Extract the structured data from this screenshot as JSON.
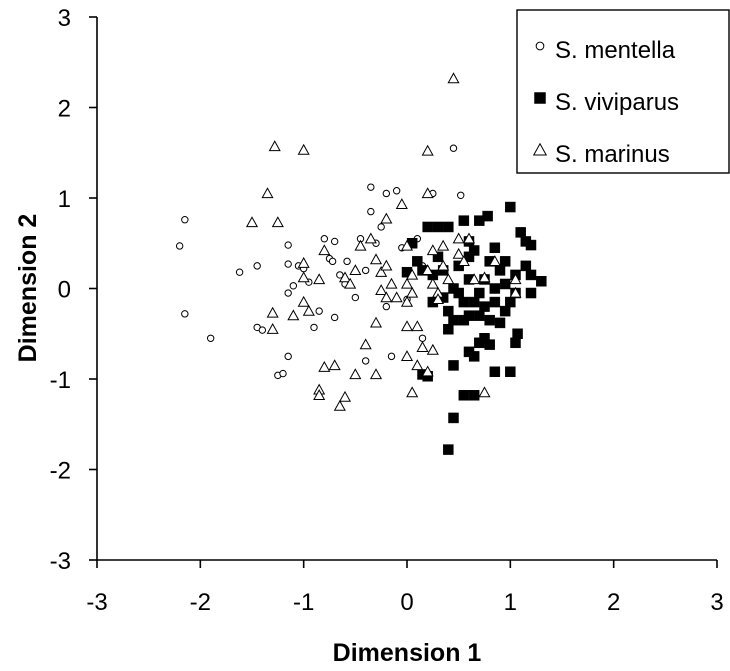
{
  "chart_data": {
    "type": "scatter",
    "xlabel": "Dimension 1",
    "ylabel": "Dimension 2",
    "xlim": [
      -3,
      3
    ],
    "ylim": [
      -3,
      3
    ],
    "x_ticks": [
      "-3",
      "-2",
      "-1",
      "0",
      "1",
      "2",
      "3"
    ],
    "y_ticks": [
      "3",
      "2",
      "1",
      "0",
      "-1",
      "-2",
      "-3"
    ],
    "grid": false,
    "legend_position": "top-right",
    "series": [
      {
        "name": "S. mentella",
        "marker": "open-circle",
        "color": "#000000",
        "points": [
          [
            -2.2,
            0.47
          ],
          [
            -2.15,
            0.76
          ],
          [
            -2.15,
            -0.28
          ],
          [
            -1.9,
            -0.55
          ],
          [
            -1.62,
            0.18
          ],
          [
            -1.45,
            0.25
          ],
          [
            -1.45,
            -0.43
          ],
          [
            -1.4,
            -0.46
          ],
          [
            -1.25,
            -0.96
          ],
          [
            -1.2,
            -0.94
          ],
          [
            -1.15,
            0.48
          ],
          [
            -1.15,
            0.27
          ],
          [
            -1.15,
            -0.05
          ],
          [
            -1.15,
            -0.75
          ],
          [
            -1.1,
            0.03
          ],
          [
            -1.05,
            0.25
          ],
          [
            -1.0,
            0.22
          ],
          [
            -0.95,
            0.07
          ],
          [
            -0.9,
            -0.43
          ],
          [
            -0.85,
            -0.25
          ],
          [
            -0.8,
            0.55
          ],
          [
            -0.75,
            0.33
          ],
          [
            -0.72,
            0.3
          ],
          [
            -0.7,
            0.52
          ],
          [
            -0.7,
            -0.32
          ],
          [
            -0.6,
            0.05
          ],
          [
            -0.58,
            0.3
          ],
          [
            -0.5,
            -0.1
          ],
          [
            -0.45,
            0.55
          ],
          [
            -0.4,
            -0.8
          ],
          [
            -0.35,
            1.12
          ],
          [
            -0.35,
            0.85
          ],
          [
            -0.3,
            0.5
          ],
          [
            -0.25,
            0.68
          ],
          [
            -0.2,
            1.05
          ],
          [
            -0.1,
            1.08
          ],
          [
            -0.15,
            -0.75
          ],
          [
            -0.05,
            0.45
          ],
          [
            0.0,
            -0.12
          ],
          [
            0.1,
            0.55
          ],
          [
            0.15,
            0.25
          ],
          [
            0.25,
            1.05
          ],
          [
            0.45,
            1.55
          ],
          [
            0.52,
            1.03
          ],
          [
            -0.65,
            0.15
          ],
          [
            -0.2,
            -0.2
          ],
          [
            0.15,
            -0.55
          ],
          [
            -0.4,
            0.2
          ]
        ]
      },
      {
        "name": "S. viviparus",
        "marker": "filled-square",
        "color": "#000000",
        "points": [
          [
            0.4,
            -1.78
          ],
          [
            0.45,
            -1.43
          ],
          [
            0.55,
            -1.18
          ],
          [
            0.65,
            -1.18
          ],
          [
            0.2,
            -0.97
          ],
          [
            0.15,
            -0.95
          ],
          [
            0.45,
            -0.85
          ],
          [
            0.6,
            -0.7
          ],
          [
            0.65,
            -0.75
          ],
          [
            0.85,
            -0.92
          ],
          [
            1.0,
            -0.92
          ],
          [
            1.05,
            -0.6
          ],
          [
            1.07,
            -0.5
          ],
          [
            0.75,
            -0.55
          ],
          [
            0.4,
            -0.45
          ],
          [
            0.45,
            -0.35
          ],
          [
            0.55,
            -0.35
          ],
          [
            0.6,
            -0.3
          ],
          [
            0.7,
            -0.3
          ],
          [
            0.8,
            -0.35
          ],
          [
            0.9,
            -0.38
          ],
          [
            0.95,
            -0.25
          ],
          [
            1.0,
            -0.15
          ],
          [
            1.05,
            -0.05
          ],
          [
            0.95,
            0.05
          ],
          [
            0.85,
            0.0
          ],
          [
            0.75,
            0.1
          ],
          [
            0.7,
            -0.05
          ],
          [
            0.65,
            -0.15
          ],
          [
            0.55,
            -0.15
          ],
          [
            0.5,
            -0.05
          ],
          [
            0.45,
            0.0
          ],
          [
            0.4,
            -0.25
          ],
          [
            0.35,
            -0.1
          ],
          [
            0.25,
            -0.15
          ],
          [
            0.25,
            0.15
          ],
          [
            0.3,
            0.35
          ],
          [
            0.2,
            0.68
          ],
          [
            0.3,
            0.68
          ],
          [
            0.4,
            0.68
          ],
          [
            0.55,
            0.75
          ],
          [
            0.6,
            0.52
          ],
          [
            0.65,
            0.42
          ],
          [
            0.7,
            0.75
          ],
          [
            0.78,
            0.8
          ],
          [
            0.85,
            0.45
          ],
          [
            0.95,
            0.3
          ],
          [
            1.0,
            0.9
          ],
          [
            1.1,
            0.62
          ],
          [
            1.15,
            0.52
          ],
          [
            1.2,
            0.48
          ],
          [
            1.15,
            0.25
          ],
          [
            1.2,
            0.15
          ],
          [
            1.2,
            -0.05
          ],
          [
            1.3,
            0.08
          ],
          [
            1.05,
            0.15
          ],
          [
            0.9,
            0.2
          ],
          [
            0.8,
            0.3
          ],
          [
            0.6,
            0.35
          ],
          [
            0.5,
            0.25
          ],
          [
            0.35,
            0.2
          ],
          [
            0.15,
            0.2
          ],
          [
            0.1,
            0.3
          ],
          [
            0.05,
            0.5
          ],
          [
            0.0,
            0.18
          ],
          [
            0.7,
            -0.6
          ],
          [
            0.75,
            -0.2
          ],
          [
            0.85,
            -0.15
          ],
          [
            0.6,
            0.1
          ],
          [
            0.8,
            -0.62
          ]
        ]
      },
      {
        "name": "S. marinus",
        "marker": "open-triangle",
        "color": "#000000",
        "points": [
          [
            0.45,
            2.32
          ],
          [
            -1.28,
            1.57
          ],
          [
            -1.0,
            1.53
          ],
          [
            0.2,
            1.52
          ],
          [
            -1.35,
            1.05
          ],
          [
            -1.5,
            0.73
          ],
          [
            -1.25,
            0.73
          ],
          [
            -0.05,
            0.93
          ],
          [
            0.2,
            1.05
          ],
          [
            -0.2,
            0.77
          ],
          [
            -0.3,
            0.32
          ],
          [
            -0.45,
            0.47
          ],
          [
            0.0,
            0.47
          ],
          [
            0.25,
            0.42
          ],
          [
            0.5,
            0.55
          ],
          [
            0.35,
            0.47
          ],
          [
            0.6,
            0.55
          ],
          [
            -0.6,
            0.12
          ],
          [
            -0.55,
            0.05
          ],
          [
            -1.0,
            0.28
          ],
          [
            -1.0,
            0.12
          ],
          [
            -0.85,
            0.1
          ],
          [
            -1.0,
            -0.15
          ],
          [
            -0.95,
            -0.25
          ],
          [
            -1.1,
            -0.3
          ],
          [
            -1.3,
            -0.27
          ],
          [
            -1.3,
            -0.45
          ],
          [
            -0.25,
            0.18
          ],
          [
            -0.2,
            0.25
          ],
          [
            -0.15,
            0.05
          ],
          [
            0.0,
            0.05
          ],
          [
            0.05,
            0.15
          ],
          [
            0.2,
            0.2
          ],
          [
            0.25,
            0.05
          ],
          [
            0.3,
            -0.05
          ],
          [
            0.35,
            0.25
          ],
          [
            0.5,
            0.38
          ],
          [
            0.55,
            0.3
          ],
          [
            0.65,
            0.1
          ],
          [
            0.75,
            0.12
          ],
          [
            0.85,
            0.3
          ],
          [
            1.05,
            0.1
          ],
          [
            1.05,
            -0.05
          ],
          [
            -0.25,
            -0.02
          ],
          [
            -0.2,
            -0.1
          ],
          [
            -0.1,
            -0.1
          ],
          [
            0.0,
            -0.15
          ],
          [
            0.05,
            -0.05
          ],
          [
            -0.3,
            -0.38
          ],
          [
            0.0,
            -0.42
          ],
          [
            0.1,
            -0.42
          ],
          [
            0.15,
            -0.65
          ],
          [
            0.25,
            -0.68
          ],
          [
            0.0,
            -0.75
          ],
          [
            -0.8,
            -0.87
          ],
          [
            -0.7,
            -0.85
          ],
          [
            -0.85,
            -1.12
          ],
          [
            -0.85,
            -1.18
          ],
          [
            -0.65,
            -1.3
          ],
          [
            -0.6,
            -1.2
          ],
          [
            -0.5,
            -0.95
          ],
          [
            -0.3,
            -0.95
          ],
          [
            -0.4,
            -0.62
          ],
          [
            0.05,
            -1.15
          ],
          [
            0.2,
            -0.92
          ],
          [
            0.75,
            -1.15
          ],
          [
            -0.5,
            0.2
          ],
          [
            -0.8,
            0.42
          ],
          [
            -0.35,
            0.55
          ],
          [
            0.1,
            -0.85
          ],
          [
            0.3,
            -0.12
          ],
          [
            0.4,
            0.1
          ]
        ]
      }
    ]
  }
}
